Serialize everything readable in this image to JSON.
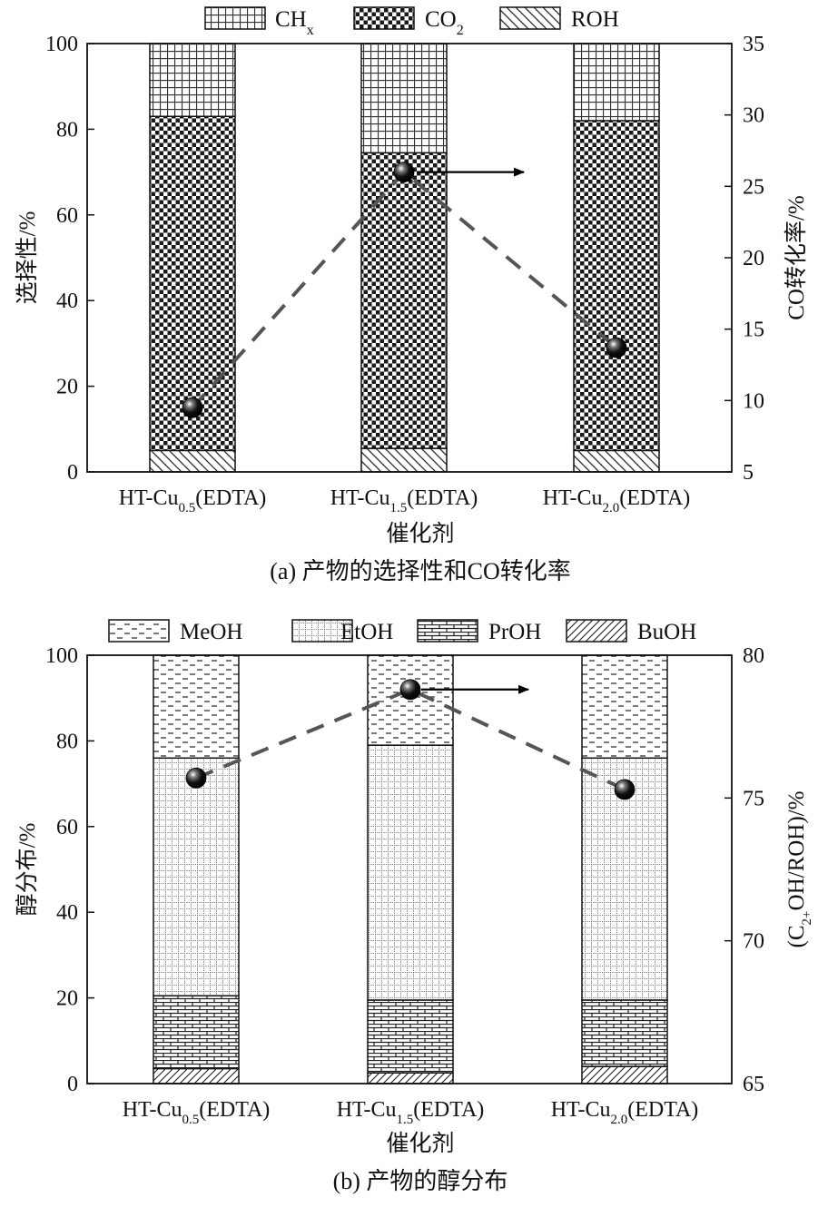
{
  "chart_data": [
    {
      "type": "bar",
      "stacked": true,
      "caption": "(a) 产物的选择性和CO转化率",
      "xlabel": "催化剂",
      "ylabel": "选择性/%",
      "y2label": "CO转化率/%",
      "ylim": [
        0,
        100
      ],
      "y2lim": [
        5,
        35
      ],
      "yticks": [
        "0",
        "20",
        "40",
        "60",
        "80",
        "100"
      ],
      "y2ticks": [
        "5",
        "10",
        "15",
        "20",
        "25",
        "30",
        "35"
      ],
      "categories": [
        {
          "base": "HT-Cu",
          "sub": "0.5",
          "suffix": "(EDTA)"
        },
        {
          "base": "HT-Cu",
          "sub": "1.5",
          "suffix": "(EDTA)"
        },
        {
          "base": "HT-Cu",
          "sub": "2.0",
          "suffix": "(EDTA)"
        }
      ],
      "series": [
        {
          "name": "ROH",
          "pattern": "diag",
          "values": [
            5,
            5.5,
            5
          ]
        },
        {
          "name": "CO2",
          "pattern": "checker",
          "values": [
            78,
            69,
            77
          ]
        },
        {
          "name": "CHx",
          "pattern": "grid",
          "values": [
            17,
            25.5,
            18
          ]
        }
      ],
      "legend": [
        {
          "pattern": "grid",
          "base": "CH",
          "sub": "x"
        },
        {
          "pattern": "checker",
          "base": "CO",
          "sub": "2"
        },
        {
          "pattern": "diag",
          "base": "ROH",
          "sub": ""
        }
      ],
      "line": {
        "name": "CO转化率",
        "axis": "right",
        "values": [
          9.5,
          26,
          13.7
        ]
      },
      "legend_position": "top"
    },
    {
      "type": "bar",
      "stacked": true,
      "caption": "(b) 产物的醇分布",
      "xlabel": "催化剂",
      "ylabel": "醇分布/%",
      "y2label": {
        "pre": "(C",
        "sub": "2+",
        "post": "OH/ROH)/%"
      },
      "ylim": [
        0,
        100
      ],
      "y2lim": [
        65,
        80
      ],
      "yticks": [
        "0",
        "20",
        "40",
        "60",
        "80",
        "100"
      ],
      "y2ticks": [
        "65",
        "70",
        "75",
        "80"
      ],
      "categories": [
        {
          "base": "HT-Cu",
          "sub": "0.5",
          "suffix": "(EDTA)"
        },
        {
          "base": "HT-Cu",
          "sub": "1.5",
          "suffix": "(EDTA)"
        },
        {
          "base": "HT-Cu",
          "sub": "2.0",
          "suffix": "(EDTA)"
        }
      ],
      "series": [
        {
          "name": "BuOH",
          "pattern": "hatch",
          "values": [
            3.5,
            2.5,
            4
          ]
        },
        {
          "name": "PrOH",
          "pattern": "brick",
          "values": [
            17,
            17,
            15.5
          ]
        },
        {
          "name": "EtOH",
          "pattern": "dotgrid",
          "values": [
            55.5,
            59.5,
            56.5
          ]
        },
        {
          "name": "MeOH",
          "pattern": "dash",
          "values": [
            24,
            21,
            24
          ]
        }
      ],
      "legend": [
        {
          "pattern": "dash",
          "base": "MeOH",
          "sub": ""
        },
        {
          "pattern": "dotgrid",
          "base": "EtOH",
          "sub": ""
        },
        {
          "pattern": "brick",
          "base": "PrOH",
          "sub": ""
        },
        {
          "pattern": "hatch",
          "base": "BuOH",
          "sub": ""
        }
      ],
      "line": {
        "name": "C2+OH/ROH",
        "axis": "right",
        "values": [
          75.7,
          78.8,
          75.3
        ]
      },
      "legend_position": "top"
    }
  ]
}
